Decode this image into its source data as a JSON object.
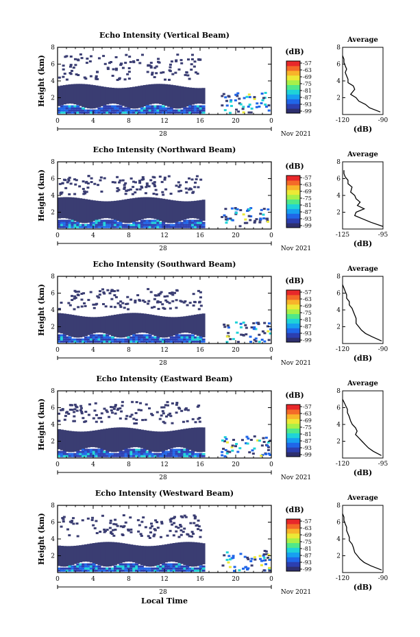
{
  "figure": {
    "xlabel": "Local Time",
    "date_label": "Nov 2021",
    "day_label": "28",
    "colorbar_unit": "(dB)",
    "colorbar_ticks": [
      "-57",
      "-63",
      "-69",
      "-75",
      "-81",
      "-87",
      "-93",
      "-99"
    ],
    "colorbar_colors": [
      "#2e2f6e",
      "#2c3fb0",
      "#2066e8",
      "#17a0f0",
      "#1fd3d8",
      "#4fe88a",
      "#a8f048",
      "#ece936",
      "#f8b42a",
      "#f46a28",
      "#e8282a"
    ],
    "no_echo_color": "#ffffff",
    "cloud_color": "#3a3d72"
  },
  "chart_data": [
    {
      "type": "heatmap",
      "title": "Echo Intensity (Vertical Beam)",
      "ylabel": "Height (km)",
      "x_ticks": [
        "0",
        "4",
        "8",
        "12",
        "16",
        "20",
        "0"
      ],
      "y_ticks": [
        "2",
        "4",
        "6",
        "8"
      ],
      "xlim": [
        0,
        24
      ],
      "ylim": [
        0,
        8
      ],
      "profile": {
        "title": "Average",
        "xlabel": "(dB)",
        "x_ticks": [
          "-120",
          "-90"
        ],
        "y_ticks": [
          "2",
          "4",
          "6",
          "8"
        ],
        "xlim": [
          -120,
          -90
        ],
        "height_km": [
          0.3,
          0.8,
          1.2,
          1.6,
          2.0,
          2.4,
          3.0,
          3.4,
          3.8,
          4.2,
          4.6,
          5.0,
          5.4,
          5.8,
          6.2,
          6.6,
          7.0
        ],
        "db": [
          -92,
          -100,
          -103,
          -108,
          -110,
          -114,
          -111,
          -112,
          -116,
          -116,
          -117,
          -118,
          -117,
          -118,
          -119,
          -119,
          -120
        ]
      }
    },
    {
      "type": "heatmap",
      "title": "Echo Intensity (Northward Beam)",
      "ylabel": "Height (km)",
      "x_ticks": [
        "0",
        "4",
        "8",
        "12",
        "16",
        "20",
        "0"
      ],
      "y_ticks": [
        "2",
        "4",
        "6",
        "8"
      ],
      "xlim": [
        0,
        24
      ],
      "ylim": [
        0,
        8
      ],
      "profile": {
        "title": "Average",
        "xlabel": "(dB)",
        "x_ticks": [
          "-125",
          "-95"
        ],
        "y_ticks": [
          "2",
          "4",
          "6",
          "8"
        ],
        "xlim": [
          -125,
          -95
        ],
        "height_km": [
          0.3,
          0.8,
          1.2,
          1.6,
          2.0,
          2.4,
          2.8,
          3.2,
          3.6,
          4.0,
          4.4,
          5.0,
          5.4,
          5.8,
          6.2,
          6.6,
          7.0
        ],
        "db": [
          -95,
          -104,
          -110,
          -116,
          -115,
          -109,
          -114,
          -112,
          -115,
          -116,
          -119,
          -118,
          -121,
          -121,
          -123,
          -124,
          -124
        ]
      }
    },
    {
      "type": "heatmap",
      "title": "Echo Intensity (Southward Beam)",
      "ylabel": "Height (km)",
      "x_ticks": [
        "0",
        "4",
        "8",
        "12",
        "16",
        "20",
        "0"
      ],
      "y_ticks": [
        "2",
        "4",
        "6",
        "8"
      ],
      "xlim": [
        0,
        24
      ],
      "ylim": [
        0,
        8
      ],
      "profile": {
        "title": "Average",
        "xlabel": "(dB)",
        "x_ticks": [
          "-120",
          "-90"
        ],
        "y_ticks": [
          "2",
          "4",
          "6",
          "8"
        ],
        "xlim": [
          -120,
          -90
        ],
        "height_km": [
          0.3,
          0.8,
          1.2,
          1.6,
          2.0,
          2.4,
          3.0,
          3.4,
          3.8,
          4.2,
          4.6,
          5.0,
          5.4,
          5.8,
          6.2,
          6.6,
          7.0
        ],
        "db": [
          -91,
          -98,
          -103,
          -106,
          -108,
          -110,
          -110,
          -111,
          -112,
          -113,
          -115,
          -115,
          -117,
          -117,
          -118,
          -119,
          -120
        ]
      }
    },
    {
      "type": "heatmap",
      "title": "Echo Intensity (Eastward Beam)",
      "ylabel": "Height (km)",
      "x_ticks": [
        "0",
        "4",
        "8",
        "12",
        "16",
        "20",
        "0"
      ],
      "y_ticks": [
        "2",
        "4",
        "6",
        "8"
      ],
      "xlim": [
        0,
        24
      ],
      "ylim": [
        0,
        8
      ],
      "profile": {
        "title": "Average",
        "xlabel": "(dB)",
        "x_ticks": [
          "-120",
          "-95"
        ],
        "y_ticks": [
          "2",
          "4",
          "6",
          "8"
        ],
        "xlim": [
          -120,
          -95
        ],
        "height_km": [
          0.3,
          0.8,
          1.2,
          1.6,
          2.0,
          2.4,
          2.8,
          3.2,
          3.6,
          4.0,
          4.4,
          5.0,
          5.4,
          5.8,
          6.2,
          6.6,
          7.0
        ],
        "db": [
          -96,
          -101,
          -104,
          -106,
          -108,
          -110,
          -112,
          -111,
          -112,
          -114,
          -115,
          -116,
          -117,
          -117,
          -118,
          -119,
          -120
        ]
      }
    },
    {
      "type": "heatmap",
      "title": "Echo Intensity (Westward Beam)",
      "ylabel": "Height (km)",
      "x_ticks": [
        "0",
        "4",
        "8",
        "12",
        "16",
        "20",
        "0"
      ],
      "y_ticks": [
        "2",
        "4",
        "6",
        "8"
      ],
      "xlim": [
        0,
        24
      ],
      "ylim": [
        0,
        8
      ],
      "profile": {
        "title": "Average",
        "xlabel": "(dB)",
        "x_ticks": [
          "-120",
          "-90"
        ],
        "y_ticks": [
          "2",
          "4",
          "6",
          "8"
        ],
        "xlim": [
          -120,
          -90
        ],
        "height_km": [
          0.3,
          0.8,
          1.2,
          1.6,
          2.0,
          2.4,
          3.0,
          3.4,
          3.8,
          4.2,
          4.6,
          5.0,
          5.4,
          5.8,
          6.2,
          6.6,
          7.0
        ],
        "db": [
          -91,
          -99,
          -104,
          -107,
          -109,
          -111,
          -112,
          -113,
          -115,
          -115,
          -116,
          -117,
          -117,
          -118,
          -119,
          -119,
          -120
        ]
      }
    }
  ]
}
